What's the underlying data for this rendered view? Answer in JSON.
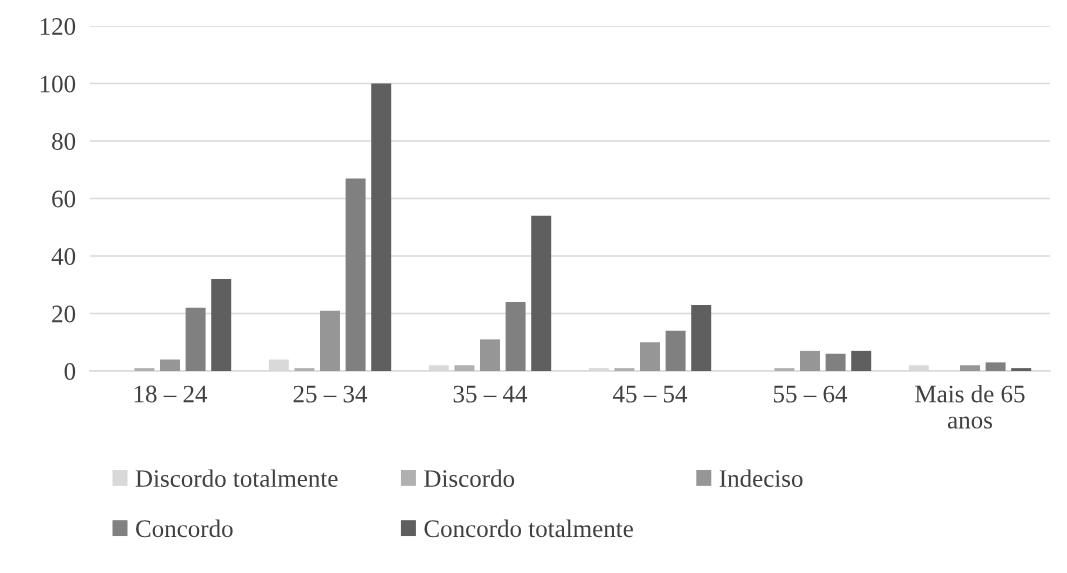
{
  "chart_data": {
    "type": "bar",
    "categories": [
      "18 – 24",
      "25 – 34",
      "35 – 44",
      "45 – 54",
      "55 – 64",
      "Mais de 65\nanos"
    ],
    "series": [
      {
        "name": "Discordo totalmente",
        "color": "#d9d9d9",
        "values": [
          0,
          4,
          2,
          1,
          0,
          2
        ]
      },
      {
        "name": "Discordo",
        "color": "#b0b0b0",
        "values": [
          1,
          1,
          2,
          1,
          1,
          0
        ]
      },
      {
        "name": "Indeciso",
        "color": "#969696",
        "values": [
          4,
          21,
          11,
          10,
          7,
          2
        ]
      },
      {
        "name": "Concordo",
        "color": "#808080",
        "values": [
          22,
          67,
          24,
          14,
          6,
          3
        ]
      },
      {
        "name": "Concordo totalmente",
        "color": "#5f5f5f",
        "values": [
          32,
          100,
          54,
          23,
          7,
          1
        ]
      }
    ],
    "ylim": [
      0,
      120
    ],
    "yticks": [
      0,
      20,
      40,
      60,
      80,
      100,
      120
    ],
    "grid": "y",
    "legend": "bottom"
  }
}
